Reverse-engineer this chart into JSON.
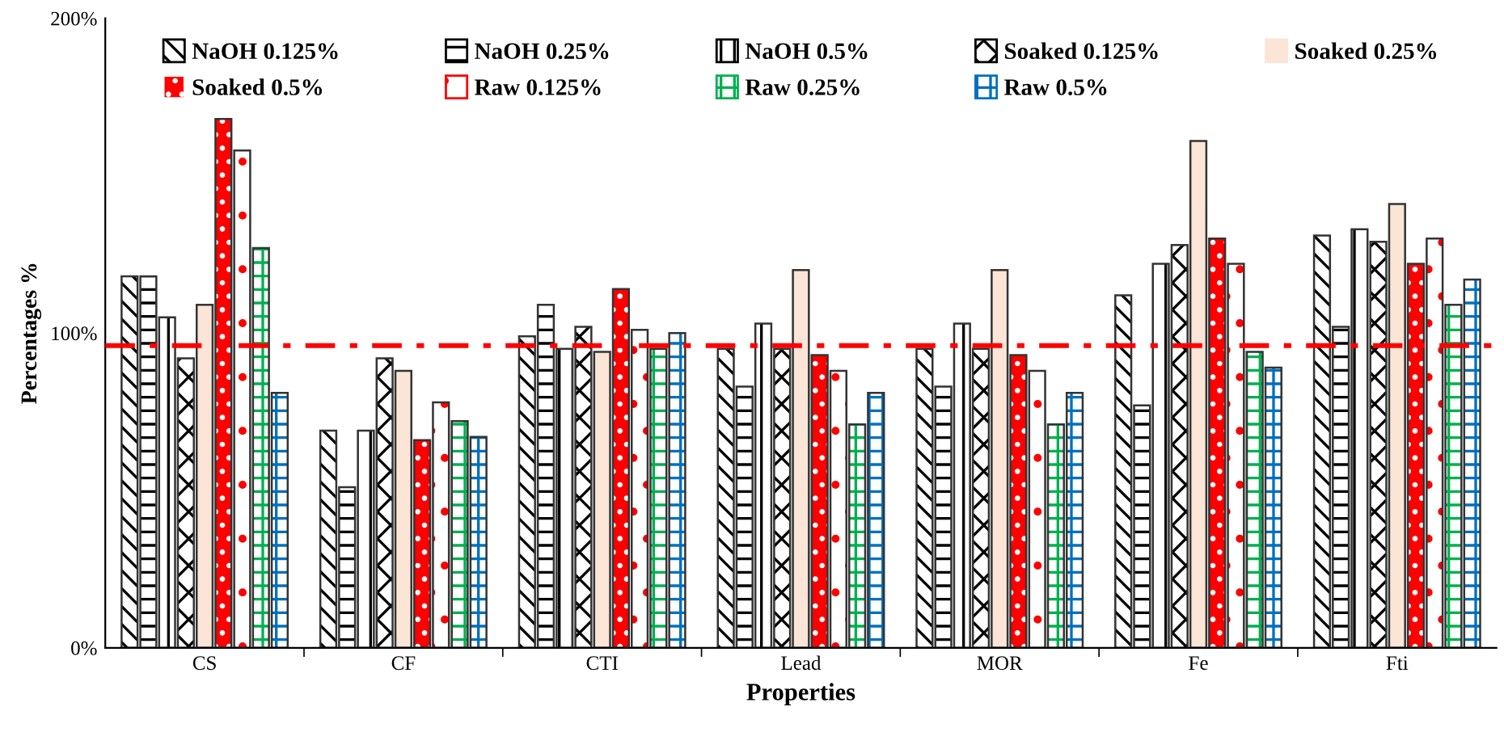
{
  "chart_data": {
    "type": "bar",
    "xlabel": "Properties",
    "ylabel": "Percentages %",
    "categories": [
      "CS",
      "CF",
      "CTI",
      "Lead",
      "MOR",
      "Fe",
      "Fti"
    ],
    "series": [
      {
        "name": "NaOH 0.125%",
        "color": "#000000",
        "values": [
          118,
          69,
          99,
          95,
          95,
          112,
          131
        ]
      },
      {
        "name": "NaOH 0.25%",
        "color": "#000000",
        "values": [
          118,
          51,
          109,
          83,
          83,
          77,
          102
        ]
      },
      {
        "name": "NaOH 0.5%",
        "color": "#000000",
        "values": [
          105,
          69,
          95,
          103,
          103,
          122,
          133
        ]
      },
      {
        "name": "Soaked 0.125%",
        "color": "#000000",
        "values": [
          92,
          92,
          102,
          95,
          95,
          128,
          129
        ]
      },
      {
        "name": "Soaked 0.25%",
        "color": "#fbe5d6",
        "values": [
          109,
          88,
          94,
          120,
          120,
          161,
          141
        ]
      },
      {
        "name": "Soaked 0.5%",
        "color": "#ff0000",
        "values": [
          168,
          66,
          114,
          93,
          93,
          130,
          122
        ]
      },
      {
        "name": "Raw 0.125%",
        "color": "#ff0000",
        "values": [
          158,
          78,
          101,
          88,
          88,
          122,
          130
        ]
      },
      {
        "name": "Raw 0.25%",
        "color": "#00b050",
        "values": [
          127,
          72,
          95,
          71,
          71,
          94,
          109
        ]
      },
      {
        "name": "Raw 0.5%",
        "color": "#0070c0",
        "values": [
          81,
          67,
          100,
          81,
          81,
          89,
          117
        ]
      }
    ],
    "ylim": [
      0,
      200
    ],
    "yticks": [
      {
        "value": 0,
        "label": "0%"
      },
      {
        "value": 100,
        "label": "100%"
      },
      {
        "value": 200,
        "label": "200%"
      }
    ],
    "ref_lines": [
      {
        "axis": "y",
        "value": 96,
        "color": "#ff0000",
        "line_style": "dashdot"
      }
    ],
    "legend": "top",
    "grid": false
  }
}
